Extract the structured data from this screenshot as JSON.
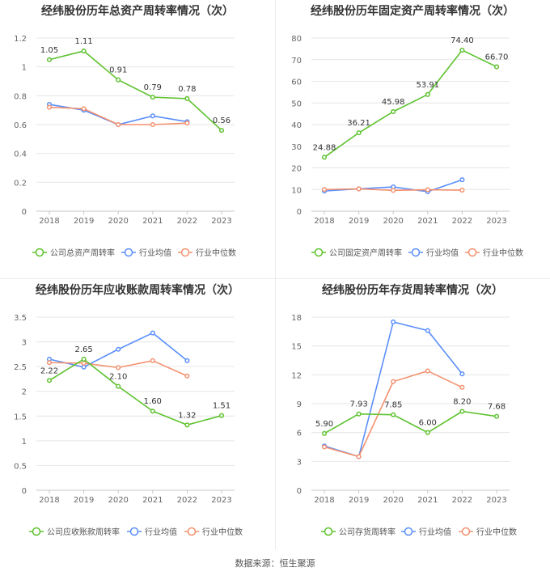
{
  "footer": {
    "source": "数据来源：恒生聚源"
  },
  "colors": {
    "company": "#5ec22f",
    "avg": "#5b8ff9",
    "median": "#f4916f",
    "grid": "#e6e6e6",
    "axis": "#999999",
    "text": "#333333"
  },
  "chart_data": [
    {
      "type": "line",
      "title": "经纬股份历年总资产周转率情况（次）",
      "categories": [
        "2018",
        "2019",
        "2020",
        "2021",
        "2022",
        "2023"
      ],
      "yticks": [
        "0",
        "0.2",
        "0.4",
        "0.6",
        "0.8",
        "1",
        "1.2"
      ],
      "ylim": [
        0,
        1.2
      ],
      "grid": true,
      "legend_position": "bottom",
      "series": [
        {
          "name": "公司总资产周转率",
          "role": "company",
          "values": [
            1.05,
            1.11,
            0.91,
            0.79,
            0.78,
            0.56
          ],
          "labels": [
            "1.05",
            "1.11",
            "0.91",
            "0.79",
            "0.78",
            "0.56"
          ]
        },
        {
          "name": "行业均值",
          "role": "avg",
          "values": [
            0.74,
            0.7,
            0.6,
            0.66,
            0.62,
            null
          ]
        },
        {
          "name": "行业中位数",
          "role": "median",
          "values": [
            0.72,
            0.71,
            0.6,
            0.6,
            0.61,
            null
          ]
        }
      ]
    },
    {
      "type": "line",
      "title": "经纬股份历年固定资产周转率情况（次）",
      "categories": [
        "2018",
        "2019",
        "2020",
        "2021",
        "2022",
        "2023"
      ],
      "yticks": [
        "0",
        "10",
        "20",
        "30",
        "40",
        "50",
        "60",
        "70",
        "80"
      ],
      "ylim": [
        0,
        80
      ],
      "grid": true,
      "legend_position": "bottom",
      "series": [
        {
          "name": "公司固定资产周转率",
          "role": "company",
          "values": [
            24.88,
            36.21,
            45.98,
            53.91,
            74.4,
            66.7
          ],
          "labels": [
            "24.88",
            "36.21",
            "45.98",
            "53.91",
            "74.40",
            "66.70"
          ]
        },
        {
          "name": "行业均值",
          "role": "avg",
          "values": [
            9.3,
            10.3,
            11.2,
            9.0,
            14.5,
            null
          ]
        },
        {
          "name": "行业中位数",
          "role": "median",
          "values": [
            10.0,
            10.3,
            9.6,
            9.9,
            9.7,
            null
          ]
        }
      ]
    },
    {
      "type": "line",
      "title": "经纬股份历年应收账款周转率情况（次）",
      "categories": [
        "2018",
        "2019",
        "2020",
        "2021",
        "2022",
        "2023"
      ],
      "yticks": [
        "0",
        "0.5",
        "1",
        "1.5",
        "2",
        "2.5",
        "3",
        "3.5"
      ],
      "ylim": [
        0,
        3.5
      ],
      "grid": true,
      "legend_position": "bottom",
      "series": [
        {
          "name": "公司应收账款周转率",
          "role": "company",
          "values": [
            2.22,
            2.65,
            2.1,
            1.6,
            1.32,
            1.51
          ],
          "labels": [
            "2.22",
            "2.65",
            "2.10",
            "1.60",
            "1.32",
            "1.51"
          ]
        },
        {
          "name": "行业均值",
          "role": "avg",
          "values": [
            2.65,
            2.49,
            2.85,
            3.18,
            2.62,
            null
          ]
        },
        {
          "name": "行业中位数",
          "role": "median",
          "values": [
            2.58,
            2.57,
            2.48,
            2.62,
            2.31,
            null
          ]
        }
      ]
    },
    {
      "type": "line",
      "title": "经纬股份历年存货周转率情况（次）",
      "categories": [
        "2018",
        "2019",
        "2020",
        "2021",
        "2022",
        "2023"
      ],
      "yticks": [
        "0",
        "3",
        "6",
        "9",
        "12",
        "15",
        "18"
      ],
      "ylim": [
        0,
        18
      ],
      "grid": true,
      "legend_position": "bottom",
      "series": [
        {
          "name": "公司存货周转率",
          "role": "company",
          "values": [
            5.9,
            7.93,
            7.85,
            6.0,
            8.2,
            7.68
          ],
          "labels": [
            "5.90",
            "7.93",
            "7.85",
            "6.00",
            "8.20",
            "7.68"
          ]
        },
        {
          "name": "行业均值",
          "role": "avg",
          "values": [
            4.6,
            3.5,
            17.5,
            16.6,
            12.1,
            null
          ]
        },
        {
          "name": "行业中位数",
          "role": "median",
          "values": [
            4.5,
            3.5,
            11.3,
            12.4,
            10.7,
            null
          ]
        }
      ]
    }
  ]
}
